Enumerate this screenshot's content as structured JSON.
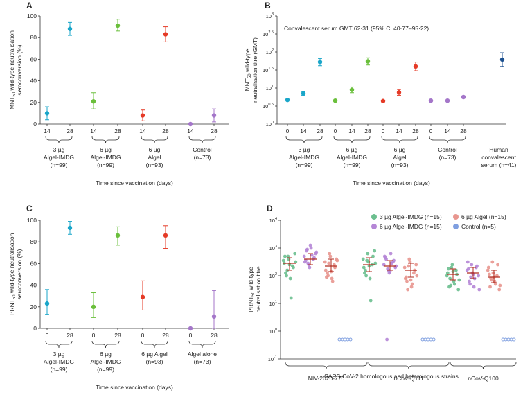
{
  "chart_data": [
    {
      "panel": "A",
      "type": "scatter",
      "ylabel_main": "MNT",
      "ylabel_sub": "50",
      "ylabel_rest": " wild-type neutralisation",
      "ylabel_line2": "seroconversion (%)",
      "xlabel": "Time since vaccination (days)",
      "ylim": [
        0,
        100
      ],
      "yticks": [
        "0",
        "20",
        "40",
        "60",
        "80",
        "100"
      ],
      "groups": [
        {
          "label": [
            "3 µg",
            "Algel-IMDG",
            "(n=99)"
          ],
          "color": "#1aa6c9",
          "points": [
            {
              "x": "14",
              "y": 10,
              "lo": 4,
              "hi": 16
            },
            {
              "x": "28",
              "y": 88,
              "lo": 82,
              "hi": 94
            }
          ]
        },
        {
          "label": [
            "6 µg",
            "Algel-IMDG",
            "(n=99)"
          ],
          "color": "#6abf3b",
          "points": [
            {
              "x": "14",
              "y": 21,
              "lo": 14,
              "hi": 29
            },
            {
              "x": "28",
              "y": 91,
              "lo": 86,
              "hi": 97
            }
          ]
        },
        {
          "label": [
            "6 µg",
            "Algel",
            "(n=93)"
          ],
          "color": "#e53a26",
          "points": [
            {
              "x": "14",
              "y": 8,
              "lo": 3,
              "hi": 13
            },
            {
              "x": "28",
              "y": 83,
              "lo": 76,
              "hi": 90
            }
          ]
        },
        {
          "label": [
            "Control",
            "(n=73)"
          ],
          "color": "#a476c9",
          "points": [
            {
              "x": "14",
              "y": 0,
              "lo": 0,
              "hi": 0
            },
            {
              "x": "28",
              "y": 8,
              "lo": 2,
              "hi": 14
            }
          ]
        }
      ]
    },
    {
      "panel": "B",
      "type": "scatter",
      "yscale": "log10",
      "ylabel_main": "MNT",
      "ylabel_sub": "50",
      "ylabel_rest": " wild-type",
      "ylabel_line2": "neutralisation titre (GMT)",
      "xlabel": "Time since vaccination (days)",
      "annotation": "Convalescent serum GMT 62·31 (95% CI 40·77–95·22)",
      "ylim_exp": [
        0,
        3
      ],
      "yticks": [
        {
          "exp": 0,
          "base": "10",
          "sup": "0"
        },
        {
          "exp": 0.5,
          "base": "10",
          "sup": "0.5"
        },
        {
          "exp": 1,
          "base": "10",
          "sup": "1"
        },
        {
          "exp": 1.5,
          "base": "10",
          "sup": "1.5"
        },
        {
          "exp": 2,
          "base": "10",
          "sup": "2"
        },
        {
          "exp": 2.5,
          "base": "10",
          "sup": "2.5"
        },
        {
          "exp": 3,
          "base": "10",
          "sup": "3"
        }
      ],
      "groups": [
        {
          "label": [
            "3 µg",
            "Algel-IMDG",
            "(n=99)"
          ],
          "color": "#1aa6c9",
          "points": [
            {
              "x": "0",
              "y": 0.67,
              "lo": 0.67,
              "hi": 0.67
            },
            {
              "x": "14",
              "y": 0.85,
              "lo": 0.8,
              "hi": 0.9
            },
            {
              "x": "28",
              "y": 1.72,
              "lo": 1.62,
              "hi": 1.82
            }
          ]
        },
        {
          "label": [
            "6 µg",
            "Algel-IMDG",
            "(n=99)"
          ],
          "color": "#6abf3b",
          "points": [
            {
              "x": "0",
              "y": 0.65,
              "lo": 0.65,
              "hi": 0.65
            },
            {
              "x": "14",
              "y": 0.95,
              "lo": 0.87,
              "hi": 1.03
            },
            {
              "x": "28",
              "y": 1.74,
              "lo": 1.64,
              "hi": 1.84
            }
          ]
        },
        {
          "label": [
            "6 µg",
            "Algel",
            "(n=93)"
          ],
          "color": "#e53a26",
          "points": [
            {
              "x": "0",
              "y": 0.64,
              "lo": 0.64,
              "hi": 0.64
            },
            {
              "x": "14",
              "y": 0.88,
              "lo": 0.8,
              "hi": 0.96
            },
            {
              "x": "28",
              "y": 1.6,
              "lo": 1.48,
              "hi": 1.72
            }
          ]
        },
        {
          "label": [
            "Control",
            "(n=73)"
          ],
          "color": "#a476c9",
          "points": [
            {
              "x": "0",
              "y": 0.65,
              "lo": 0.65,
              "hi": 0.65
            },
            {
              "x": "14",
              "y": 0.65,
              "lo": 0.65,
              "hi": 0.65
            },
            {
              "x": "28",
              "y": 0.75,
              "lo": 0.72,
              "hi": 0.78
            }
          ]
        },
        {
          "label": [
            "Human",
            "convalescent",
            "serum (n=41)"
          ],
          "color": "#1b4f8f",
          "points": [
            {
              "x": "",
              "y": 1.79,
              "lo": 1.6,
              "hi": 1.98
            }
          ]
        }
      ]
    },
    {
      "panel": "C",
      "type": "scatter",
      "ylabel_main": "PRNT",
      "ylabel_sub": "50",
      "ylabel_rest": " wild-type neutralisation",
      "ylabel_line2": "seroconversion (%)",
      "xlabel": "Time since vaccination (days)",
      "ylim": [
        0,
        100
      ],
      "yticks": [
        "0",
        "20",
        "40",
        "60",
        "80",
        "100"
      ],
      "groups": [
        {
          "label": [
            "3 µg",
            "Algel-IMDG",
            "(n=99)"
          ],
          "color": "#1aa6c9",
          "points": [
            {
              "x": "0",
              "y": 23,
              "lo": 13,
              "hi": 36
            },
            {
              "x": "28",
              "y": 93,
              "lo": 87,
              "hi": 99
            }
          ]
        },
        {
          "label": [
            "6 µg",
            "Algel-IMDG",
            "(n=99)"
          ],
          "color": "#6abf3b",
          "points": [
            {
              "x": "0",
              "y": 20,
              "lo": 10,
              "hi": 33
            },
            {
              "x": "28",
              "y": 86,
              "lo": 77,
              "hi": 94
            }
          ]
        },
        {
          "label": [
            "6 µg Algel",
            "(n=93)"
          ],
          "color": "#e53a26",
          "points": [
            {
              "x": "0",
              "y": 29,
              "lo": 17,
              "hi": 44
            },
            {
              "x": "28",
              "y": 86,
              "lo": 74,
              "hi": 95
            }
          ]
        },
        {
          "label": [
            "Algel alone",
            "(n=73)"
          ],
          "color": "#a476c9",
          "points": [
            {
              "x": "0",
              "y": 0,
              "lo": 0,
              "hi": 0
            },
            {
              "x": "28",
              "y": 11,
              "lo": 0,
              "hi": 35
            }
          ]
        }
      ]
    },
    {
      "panel": "D",
      "type": "scatter",
      "yscale": "log10",
      "ylabel_main": "PRNT",
      "ylabel_sub": "50",
      "ylabel_rest": " wild-type",
      "ylabel_line2": "neutralisation titre",
      "xlabel": "SARS-CoV-2 homologous and heterologous strains",
      "ylim_exp": [
        -1,
        4
      ],
      "yticks": [
        {
          "exp": -1,
          "base": "10",
          "sup": "-1"
        },
        {
          "exp": 0,
          "base": "10",
          "sup": "0"
        },
        {
          "exp": 1,
          "base": "10",
          "sup": "1"
        },
        {
          "exp": 2,
          "base": "10",
          "sup": "2"
        },
        {
          "exp": 3,
          "base": "10",
          "sup": "3"
        },
        {
          "exp": 4,
          "base": "10",
          "sup": "4"
        }
      ],
      "strains": [
        "NIV-2020-770",
        "nCoV-Q111",
        "nCoV-Q100"
      ],
      "legend": [
        {
          "label": "3 µg Algel-IMDG (n=15)",
          "color": "#6cbf8f"
        },
        {
          "label": "6 µg Algel (n=15)",
          "color": "#e8968f"
        },
        {
          "label": "6 µg Algel-IMDG (n=15)",
          "color": "#b586d6"
        },
        {
          "label": "Control (n=5)",
          "color": "#7f9fe0"
        }
      ],
      "series": [
        {
          "name": "3 µg Algel-IMDG",
          "color": "#6cbf8f",
          "values": [
            [
              2.55,
              2.1,
              2.7,
              1.9,
              2.35,
              2.8,
              2.45,
              2.0,
              2.6,
              1.2,
              2.3,
              2.5,
              2.7,
              2.2,
              2.4
            ],
            [
              2.6,
              2.2,
              2.8,
              1.9,
              2.4,
              2.9,
              2.3,
              2.0,
              2.5,
              1.1,
              2.7,
              2.45,
              2.1,
              2.55,
              2.35
            ],
            [
              2.0,
              1.6,
              2.3,
              1.8,
              2.2,
              1.5,
              2.1,
              1.9,
              2.4,
              1.7,
              2.05,
              1.85,
              2.25,
              1.65,
              2.15
            ]
          ],
          "gmt": [
            2.45,
            2.4,
            2.05
          ],
          "ci": [
            [
              2.2,
              2.65
            ],
            [
              2.15,
              2.65
            ],
            [
              1.85,
              2.25
            ]
          ]
        },
        {
          "name": "6 µg Algel-IMDG",
          "color": "#b586d6",
          "values": [
            [
              2.7,
              2.9,
              2.4,
              3.0,
              2.6,
              2.8,
              2.5,
              2.95,
              2.3,
              2.75,
              2.65,
              2.85,
              2.55,
              2.45,
              3.1
            ],
            [
              2.4,
              2.6,
              2.2,
              2.8,
              2.5,
              2.3,
              2.7,
              -0.3,
              2.1,
              2.45,
              2.55,
              2.35,
              2.65,
              2.25,
              2.15
            ],
            [
              2.2,
              1.8,
              2.4,
              1.6,
              2.3,
              2.0,
              2.5,
              1.7,
              2.1,
              1.9,
              2.35,
              1.5,
              2.25,
              1.95,
              2.05
            ]
          ],
          "gmt": [
            2.6,
            2.35,
            2.1
          ],
          "ci": [
            [
              2.4,
              2.8
            ],
            [
              2.2,
              2.55
            ],
            [
              1.9,
              2.3
            ]
          ]
        },
        {
          "name": "6 µg Algel",
          "color": "#e8968f",
          "values": [
            [
              2.5,
              2.1,
              2.8,
              1.9,
              2.4,
              2.6,
              2.2,
              2.0,
              2.7,
              1.8,
              2.3,
              2.55,
              1.95,
              2.45,
              2.15
            ],
            [
              2.3,
              1.8,
              2.6,
              1.6,
              2.1,
              2.4,
              1.9,
              1.5,
              2.5,
              1.7,
              2.2,
              2.0,
              1.95,
              2.35,
              1.85
            ],
            [
              2.2,
              1.6,
              2.5,
              1.8,
              2.0,
              1.5,
              2.3,
              1.9,
              2.1,
              1.7,
              2.4,
              1.65,
              2.05,
              1.85,
              1.95
            ]
          ],
          "gmt": [
            2.35,
            2.2,
            1.95
          ],
          "ci": [
            [
              2.15,
              2.6
            ],
            [
              1.95,
              2.45
            ],
            [
              1.75,
              2.2
            ]
          ]
        },
        {
          "name": "Control",
          "color": "#7f9fe0",
          "values": [
            [
              -0.3,
              -0.3,
              -0.3,
              -0.3,
              -0.3
            ],
            [
              -0.3,
              -0.3,
              -0.3,
              -0.3,
              -0.3
            ],
            [
              -0.3,
              -0.3,
              -0.3,
              -0.3,
              -0.3
            ]
          ]
        }
      ]
    }
  ]
}
